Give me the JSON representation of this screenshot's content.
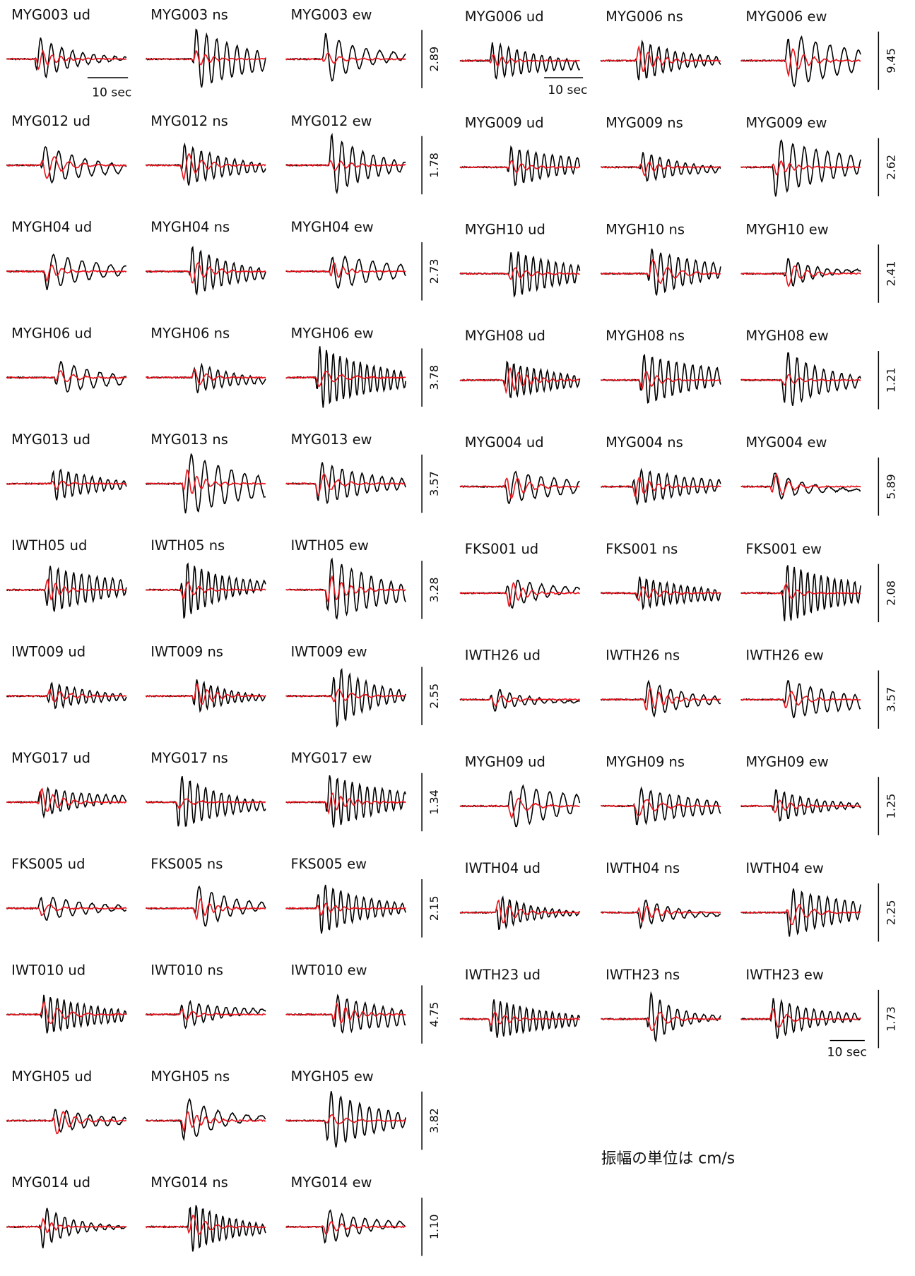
{
  "left": [
    {
      "panels": [
        "MYG003 ud",
        "MYG003 ns",
        "MYG003 ew"
      ],
      "amplitude": "2.89"
    },
    {
      "panels": [
        "MYG012 ud",
        "MYG012 ns",
        "MYG012 ew"
      ],
      "amplitude": "1.78"
    },
    {
      "panels": [
        "MYGH04 ud",
        "MYGH04 ns",
        "MYGH04 ew"
      ],
      "amplitude": "2.73"
    },
    {
      "panels": [
        "MYGH06 ud",
        "MYGH06 ns",
        "MYGH06 ew"
      ],
      "amplitude": "3.78"
    },
    {
      "panels": [
        "MYG013 ud",
        "MYG013 ns",
        "MYG013 ew"
      ],
      "amplitude": "3.57"
    },
    {
      "panels": [
        "IWTH05 ud",
        "IWTH05 ns",
        "IWTH05 ew"
      ],
      "amplitude": "3.28"
    },
    {
      "panels": [
        "IWT009 ud",
        "IWT009 ns",
        "IWT009 ew"
      ],
      "amplitude": "2.55"
    },
    {
      "panels": [
        "MYG017 ud",
        "MYG017 ns",
        "MYG017 ew"
      ],
      "amplitude": "1.34"
    },
    {
      "panels": [
        "FKS005 ud",
        "FKS005 ns",
        "FKS005 ew"
      ],
      "amplitude": "2.15"
    },
    {
      "panels": [
        "IWT010 ud",
        "IWT010 ns",
        "IWT010 ew"
      ],
      "amplitude": "4.75"
    },
    {
      "panels": [
        "MYGH05 ud",
        "MYGH05 ns",
        "MYGH05 ew"
      ],
      "amplitude": "3.82"
    },
    {
      "panels": [
        "MYG014 ud",
        "MYG014 ns",
        "MYG014 ew"
      ],
      "amplitude": "1.10"
    }
  ],
  "right": [
    {
      "panels": [
        "MYG006 ud",
        "MYG006 ns",
        "MYG006 ew"
      ],
      "amplitude": "9.45"
    },
    {
      "panels": [
        "MYG009 ud",
        "MYG009 ns",
        "MYG009 ew"
      ],
      "amplitude": "2.62"
    },
    {
      "panels": [
        "MYGH10 ud",
        "MYGH10 ns",
        "MYGH10 ew"
      ],
      "amplitude": "2.41"
    },
    {
      "panels": [
        "MYGH08 ud",
        "MYGH08 ns",
        "MYGH08 ew"
      ],
      "amplitude": "1.21"
    },
    {
      "panels": [
        "MYG004 ud",
        "MYG004 ns",
        "MYG004 ew"
      ],
      "amplitude": "5.89"
    },
    {
      "panels": [
        "FKS001 ud",
        "FKS001 ns",
        "FKS001 ew"
      ],
      "amplitude": "2.08"
    },
    {
      "panels": [
        "IWTH26 ud",
        "IWTH26 ns",
        "IWTH26 ew"
      ],
      "amplitude": "3.57"
    },
    {
      "panels": [
        "MYGH09 ud",
        "MYGH09 ns",
        "MYGH09 ew"
      ],
      "amplitude": "1.25"
    },
    {
      "panels": [
        "IWTH04 ud",
        "IWTH04 ns",
        "IWTH04 ew"
      ],
      "amplitude": "2.25"
    },
    {
      "panels": [
        "IWTH23 ud",
        "IWTH23 ns",
        "IWTH23 ew"
      ],
      "amplitude": "1.73"
    }
  ],
  "time_scale": [
    "10 sec",
    "10 sec",
    "10 sec"
  ],
  "note": "振幅の単位は cm/s"
}
